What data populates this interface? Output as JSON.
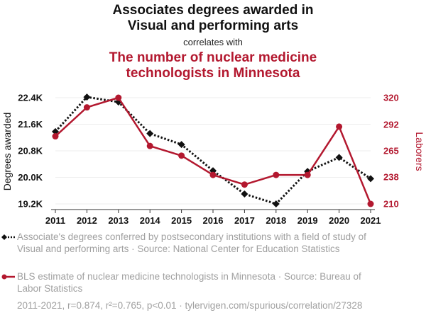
{
  "chart_data": {
    "type": "line",
    "title": "Associates degrees awarded in Visual and performing arts",
    "title_line1": "Associates degrees awarded in",
    "title_line2": "Visual and performing arts",
    "correlates_text": "correlates with",
    "subtitle": "The number of nuclear medicine technologists in Minnesota",
    "subtitle_line1": "The number of nuclear medicine",
    "subtitle_line2": "technologists in Minnesota",
    "x": [
      2011,
      2012,
      2013,
      2014,
      2015,
      2016,
      2017,
      2018,
      2019,
      2020,
      2021
    ],
    "x_tick_labels": [
      "2011",
      "2012",
      "2013",
      "2014",
      "2015",
      "2016",
      "2017",
      "2018",
      "2019",
      "2020",
      "2021"
    ],
    "series": [
      {
        "name": "Associate's degrees conferred by postsecondary institutions with a field of study of Visual and performing arts",
        "axis": "left",
        "color": "#111111",
        "style": "dotted",
        "marker": "diamond",
        "values": [
          21380,
          22420,
          22270,
          21320,
          20990,
          20200,
          19500,
          19200,
          20180,
          20600,
          19960
        ]
      },
      {
        "name": "BLS estimate of nuclear medicine technologists in Minnesota",
        "axis": "right",
        "color": "#b3182f",
        "style": "solid",
        "marker": "circle",
        "values": [
          280,
          310,
          320,
          270,
          260,
          240,
          230,
          240,
          240,
          290,
          210
        ]
      }
    ],
    "y_left": {
      "label": "Degrees awarded",
      "ylim": [
        19200,
        22400
      ],
      "ticks": [
        19200,
        20000,
        20800,
        21600,
        22400
      ],
      "tick_labels": [
        "19.2K",
        "20.0K",
        "20.8K",
        "21.6K",
        "22.4K"
      ]
    },
    "y_right": {
      "label": "Laborers",
      "ylim": [
        210,
        320
      ],
      "ticks": [
        210,
        238,
        265,
        292,
        320
      ],
      "tick_labels": [
        "210",
        "238",
        "265",
        "292",
        "320"
      ]
    },
    "grid": true
  },
  "legend": {
    "series1": "Associate's degrees conferred by postsecondary institutions with a field of study of Visual and performing arts · Source: National Center for Education Statistics",
    "series2": "BLS estimate of nuclear medicine technologists in Minnesota · Source: Bureau of Labor Statistics"
  },
  "footer": "2011-2021, r=0.874, r²=0.765, p<0.01 · tylervigen.com/spurious/correlation/27328"
}
